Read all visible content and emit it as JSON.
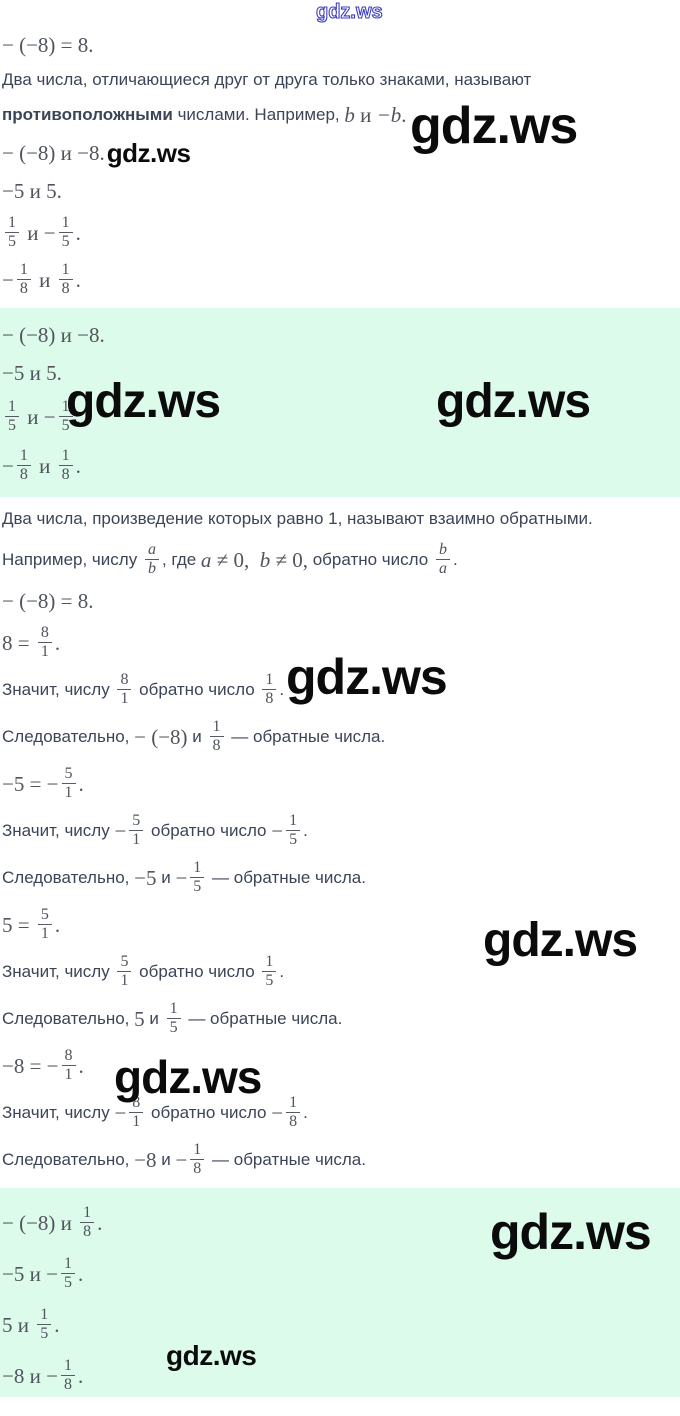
{
  "page": {
    "watermark_text": "gdz.ws",
    "background_color": "#ffffff",
    "text_color": "#3c4557",
    "math_color": "#50555d",
    "highlight_color": "#ddfbea",
    "watermark_color": "#0b0b0b",
    "watermark_outline_color": "#3d3dc0"
  },
  "content": {
    "blocks": [
      {
        "id": "intro",
        "style": "plain",
        "lines": [
          {
            "segments": [
              {
                "k": "m",
                "t": "− (−8) = 8."
              }
            ]
          },
          {
            "segments": [
              {
                "k": "t",
                "t": "Два числа, отличающиеся друг от друга только знаками, называют"
              }
            ]
          },
          {
            "segments": [
              {
                "k": "b",
                "t": "противоположными"
              },
              {
                "k": "t",
                "t": " числами. Например, "
              },
              {
                "k": "mi",
                "t": "b"
              },
              {
                "k": "m",
                "t": " и "
              },
              {
                "k": "mi",
                "t": "−b"
              },
              {
                "k": "m",
                "t": "."
              }
            ]
          },
          {
            "segments": [
              {
                "k": "m",
                "t": "− (−8) и −8."
              },
              {
                "k": "wm",
                "t": "gdz.ws"
              }
            ]
          },
          {
            "segments": [
              {
                "k": "m",
                "t": "−5 и 5."
              }
            ]
          },
          {
            "segments": [
              {
                "k": "f",
                "n": "1",
                "d": "5"
              },
              {
                "k": "m",
                "t": " и −"
              },
              {
                "k": "f",
                "n": "1",
                "d": "5"
              },
              {
                "k": "m",
                "t": "."
              }
            ]
          },
          {
            "segments": [
              {
                "k": "m",
                "t": "−"
              },
              {
                "k": "f",
                "n": "1",
                "d": "8"
              },
              {
                "k": "m",
                "t": " и "
              },
              {
                "k": "f",
                "n": "1",
                "d": "8"
              },
              {
                "k": "m",
                "t": "."
              }
            ]
          }
        ]
      },
      {
        "id": "answer-opposites",
        "style": "highlight",
        "lines": [
          {
            "segments": [
              {
                "k": "m",
                "t": "− (−8) и −8."
              }
            ]
          },
          {
            "segments": [
              {
                "k": "m",
                "t": "−5 и 5."
              }
            ]
          },
          {
            "segments": [
              {
                "k": "f",
                "n": "1",
                "d": "5"
              },
              {
                "k": "m",
                "t": " и −"
              },
              {
                "k": "f",
                "n": "1",
                "d": "5"
              },
              {
                "k": "m",
                "t": "."
              }
            ]
          },
          {
            "segments": [
              {
                "k": "m",
                "t": "−"
              },
              {
                "k": "f",
                "n": "1",
                "d": "8"
              },
              {
                "k": "m",
                "t": " и "
              },
              {
                "k": "f",
                "n": "1",
                "d": "8"
              },
              {
                "k": "m",
                "t": "."
              }
            ]
          }
        ]
      },
      {
        "id": "explanation",
        "style": "plain",
        "lines": [
          {
            "segments": [
              {
                "k": "t",
                "t": "Два числа, произведение которых равно 1, называют взаимно обратными."
              }
            ]
          },
          {
            "segments": [
              {
                "k": "t",
                "t": "Например, числу "
              },
              {
                "k": "fi",
                "n": "a",
                "d": "b"
              },
              {
                "k": "t",
                "t": ", где "
              },
              {
                "k": "mi",
                "t": "a"
              },
              {
                "k": "m",
                "t": " ≠ 0,  "
              },
              {
                "k": "mi",
                "t": "b"
              },
              {
                "k": "m",
                "t": " ≠ 0,"
              },
              {
                "k": "t",
                "t": " обратно число "
              },
              {
                "k": "fi",
                "n": "b",
                "d": "a"
              },
              {
                "k": "t",
                "t": "."
              }
            ]
          },
          {
            "segments": [
              {
                "k": "m",
                "t": "− (−8) = 8."
              }
            ]
          },
          {
            "segments": [
              {
                "k": "m",
                "t": "8 = "
              },
              {
                "k": "f",
                "n": "8",
                "d": "1"
              },
              {
                "k": "m",
                "t": "."
              }
            ]
          },
          {
            "segments": [
              {
                "k": "t",
                "t": "Значит, числу "
              },
              {
                "k": "f",
                "n": "8",
                "d": "1"
              },
              {
                "k": "t",
                "t": " обратно число "
              },
              {
                "k": "f",
                "n": "1",
                "d": "8"
              },
              {
                "k": "t",
                "t": "."
              }
            ]
          },
          {
            "segments": [
              {
                "k": "t",
                "t": "Следовательно, "
              },
              {
                "k": "m",
                "t": "− (−8)"
              },
              {
                "k": "t",
                "t": " и "
              },
              {
                "k": "f",
                "n": "1",
                "d": "8"
              },
              {
                "k": "t",
                "t": " — обратные числа."
              }
            ]
          },
          {
            "segments": [
              {
                "k": "m",
                "t": "−5 = −"
              },
              {
                "k": "f",
                "n": "5",
                "d": "1"
              },
              {
                "k": "m",
                "t": "."
              }
            ]
          },
          {
            "segments": [
              {
                "k": "t",
                "t": "Значит, числу "
              },
              {
                "k": "m",
                "t": "−"
              },
              {
                "k": "f",
                "n": "5",
                "d": "1"
              },
              {
                "k": "t",
                "t": " обратно число "
              },
              {
                "k": "m",
                "t": "−"
              },
              {
                "k": "f",
                "n": "1",
                "d": "5"
              },
              {
                "k": "t",
                "t": "."
              }
            ]
          },
          {
            "segments": [
              {
                "k": "t",
                "t": "Следовательно, "
              },
              {
                "k": "m",
                "t": "−5"
              },
              {
                "k": "t",
                "t": " и "
              },
              {
                "k": "m",
                "t": "−"
              },
              {
                "k": "f",
                "n": "1",
                "d": "5"
              },
              {
                "k": "t",
                "t": " — обратные числа."
              }
            ]
          },
          {
            "segments": [
              {
                "k": "m",
                "t": "5 = "
              },
              {
                "k": "f",
                "n": "5",
                "d": "1"
              },
              {
                "k": "m",
                "t": "."
              }
            ]
          },
          {
            "segments": [
              {
                "k": "t",
                "t": "Значит, числу "
              },
              {
                "k": "f",
                "n": "5",
                "d": "1"
              },
              {
                "k": "t",
                "t": " обратно число "
              },
              {
                "k": "f",
                "n": "1",
                "d": "5"
              },
              {
                "k": "t",
                "t": "."
              }
            ]
          },
          {
            "segments": [
              {
                "k": "t",
                "t": "Следовательно, "
              },
              {
                "k": "m",
                "t": "5"
              },
              {
                "k": "t",
                "t": " и "
              },
              {
                "k": "f",
                "n": "1",
                "d": "5"
              },
              {
                "k": "t",
                "t": " — обратные числа."
              }
            ]
          },
          {
            "segments": [
              {
                "k": "m",
                "t": "−8 = −"
              },
              {
                "k": "f",
                "n": "8",
                "d": "1"
              },
              {
                "k": "m",
                "t": "."
              }
            ]
          },
          {
            "segments": [
              {
                "k": "t",
                "t": "Значит, числу "
              },
              {
                "k": "m",
                "t": "−"
              },
              {
                "k": "f",
                "n": "8",
                "d": "1"
              },
              {
                "k": "t",
                "t": " обратно число "
              },
              {
                "k": "m",
                "t": "−"
              },
              {
                "k": "f",
                "n": "1",
                "d": "8"
              },
              {
                "k": "t",
                "t": "."
              }
            ]
          },
          {
            "segments": [
              {
                "k": "t",
                "t": "Следовательно, "
              },
              {
                "k": "m",
                "t": "−8"
              },
              {
                "k": "t",
                "t": " и "
              },
              {
                "k": "m",
                "t": "−"
              },
              {
                "k": "f",
                "n": "1",
                "d": "8"
              },
              {
                "k": "t",
                "t": " — обратные числа."
              }
            ]
          }
        ]
      },
      {
        "id": "answer-reciprocals",
        "style": "highlight",
        "lines": [
          {
            "segments": [
              {
                "k": "m",
                "t": "− (−8) и "
              },
              {
                "k": "f",
                "n": "1",
                "d": "8"
              },
              {
                "k": "m",
                "t": "."
              }
            ]
          },
          {
            "segments": [
              {
                "k": "m",
                "t": "−5 и −"
              },
              {
                "k": "f",
                "n": "1",
                "d": "5"
              },
              {
                "k": "m",
                "t": "."
              }
            ]
          },
          {
            "segments": [
              {
                "k": "m",
                "t": "5 и "
              },
              {
                "k": "f",
                "n": "1",
                "d": "5"
              },
              {
                "k": "m",
                "t": "."
              }
            ]
          },
          {
            "segments": [
              {
                "k": "m",
                "t": "−8 и −"
              },
              {
                "k": "f",
                "n": "1",
                "d": "8"
              },
              {
                "k": "m",
                "t": "."
              }
            ]
          }
        ]
      }
    ]
  }
}
